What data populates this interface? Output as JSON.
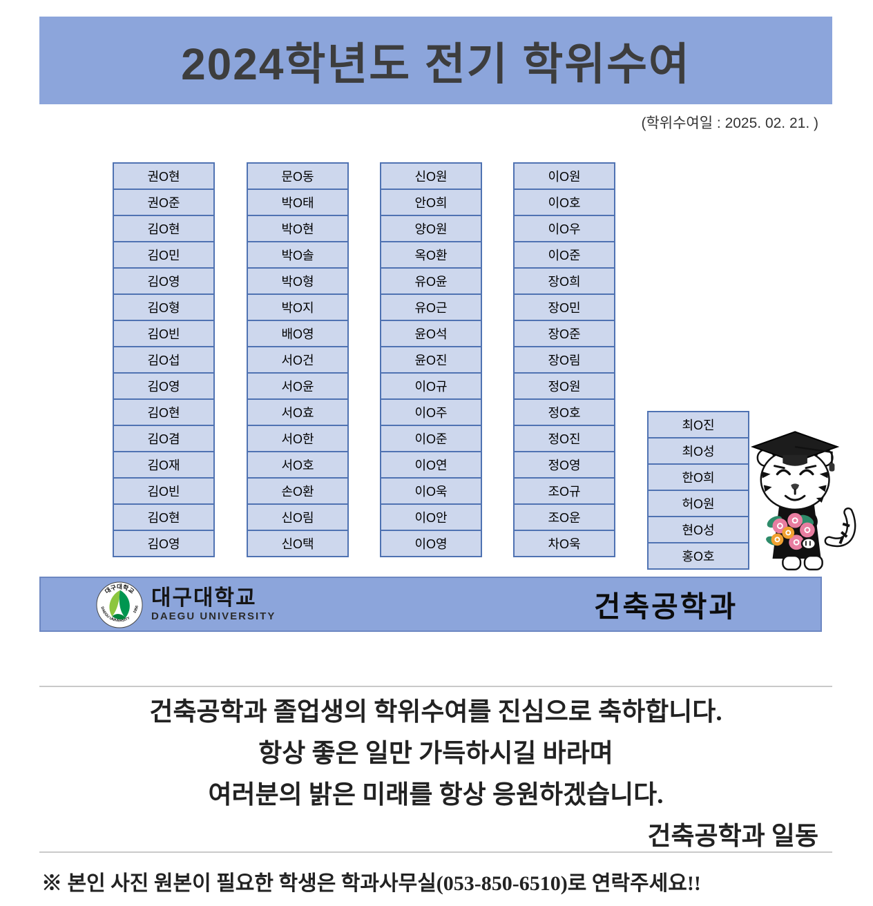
{
  "header": {
    "title": "2024학년도 전기 학위수여",
    "date_note": "(학위수여일 : 2025. 02. 21. )"
  },
  "graduates": {
    "columns": [
      [
        "권O현",
        "권O준",
        "김O현",
        "김O민",
        "김O영",
        "김O형",
        "김O빈",
        "김O섭",
        "김O영",
        "김O현",
        "김O겸",
        "김O재",
        "김O빈",
        "김O현",
        "김O영"
      ],
      [
        "문O동",
        "박O태",
        "박O현",
        "박O솔",
        "박O형",
        "박O지",
        "배O영",
        "서O건",
        "서O윤",
        "서O효",
        "서O한",
        "서O호",
        "손O환",
        "신O림",
        "신O택"
      ],
      [
        "신O원",
        "안O희",
        "양O원",
        "옥O환",
        "유O윤",
        "유O근",
        "윤O석",
        "윤O진",
        "이O규",
        "이O주",
        "이O준",
        "이O연",
        "이O욱",
        "이O안",
        "이O영"
      ],
      [
        "이O원",
        "이O호",
        "이O우",
        "이O준",
        "장O희",
        "장O민",
        "장O준",
        "장O림",
        "정O원",
        "정O호",
        "정O진",
        "정O영",
        "조O규",
        "조O운",
        "차O욱"
      ],
      [
        "최O진",
        "최O성",
        "한O희",
        "허O원",
        "현O성",
        "홍O호"
      ]
    ]
  },
  "banner": {
    "university_kr": "대구대학교",
    "university_en": "DAEGU UNIVERSITY",
    "department": "건축공학과"
  },
  "logo": {
    "rim_top_text": "대구대학교",
    "rim_bottom_text": "DAEGU UNIVERSITY",
    "year": "1956"
  },
  "congrats": {
    "lines": [
      "건축공학과 졸업생의 학위수여를 진심으로 축하합니다.",
      "항상 좋은 일만 가득하시길 바라며",
      "여러분의 밝은 미래를 항상 응원하겠습니다."
    ],
    "sender": "건축공학과 일동"
  },
  "footer": {
    "note": "※ 본인 사진 원본이 필요한 학생은 학과사무실(053-850-6510)로 연락주세요!!"
  },
  "colors": {
    "banner_bg": "#8CA5DB",
    "cell_bg": "#CDD7ED",
    "cell_border": "#4F72B2",
    "logo_green_dark": "#009650",
    "logo_green_lime": "#8CC63F",
    "flower_pink": "#E87DA0",
    "flower_orange": "#F0A030"
  }
}
